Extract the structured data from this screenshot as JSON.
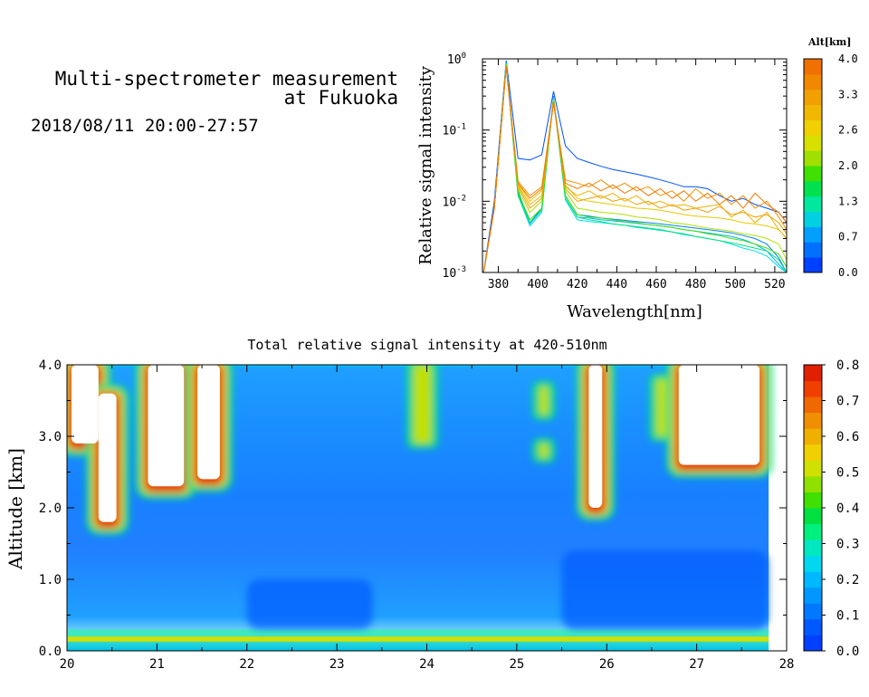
{
  "header": {
    "title_line1": "Multi-spectrometer measurement",
    "title_line2": "at Fukuoka",
    "datetime": "2018/08/11 20:00-27:57"
  },
  "chart_data": [
    {
      "type": "line",
      "xlabel": "Wavelength[nm]",
      "ylabel": "Relative signal intensity",
      "yscale": "log",
      "xlim": [
        372,
        526
      ],
      "ylim": [
        0.001,
        1
      ],
      "x_ticks": [
        "380",
        "400",
        "420",
        "440",
        "460",
        "480",
        "500",
        "520"
      ],
      "y_ticks": [
        {
          "base": "10",
          "exp": "-3"
        },
        {
          "base": "10",
          "exp": "-2"
        },
        {
          "base": "10",
          "exp": "-1"
        },
        {
          "base": "10",
          "exp": "0"
        }
      ],
      "x": [
        372,
        378,
        384,
        390,
        396,
        402,
        408,
        414,
        420,
        426,
        432,
        438,
        444,
        450,
        456,
        462,
        468,
        474,
        480,
        486,
        492,
        498,
        504,
        510,
        516,
        522,
        526
      ],
      "series": [
        {
          "altitude_km": 0.0,
          "color": "#0050ff",
          "values": [
            0.0008,
            0.01,
            0.95,
            0.04,
            0.038,
            0.045,
            0.35,
            0.06,
            0.04,
            0.035,
            0.031,
            0.028,
            0.026,
            0.024,
            0.022,
            0.02,
            0.018,
            0.016,
            0.016,
            0.015,
            0.012,
            0.01,
            0.011,
            0.009,
            0.008,
            0.007,
            0.005
          ]
        },
        {
          "altitude_km": 0.2,
          "color": "#0080ff",
          "values": [
            0.0008,
            0.008,
            0.9,
            0.014,
            0.005,
            0.008,
            0.3,
            0.012,
            0.0065,
            0.0062,
            0.0058,
            0.0056,
            0.0054,
            0.0052,
            0.005,
            0.0048,
            0.0046,
            0.0044,
            0.0042,
            0.004,
            0.0038,
            0.0036,
            0.0033,
            0.003,
            0.0025,
            0.0016,
            0.001
          ]
        },
        {
          "altitude_km": 0.5,
          "color": "#00b0ff",
          "values": [
            0.0008,
            0.008,
            0.88,
            0.013,
            0.0048,
            0.0075,
            0.29,
            0.011,
            0.006,
            0.0058,
            0.0055,
            0.0053,
            0.0051,
            0.0049,
            0.0047,
            0.0045,
            0.0043,
            0.004,
            0.0038,
            0.0036,
            0.0034,
            0.0032,
            0.0029,
            0.0025,
            0.002,
            0.0013,
            0.001
          ]
        },
        {
          "altitude_km": 1.0,
          "color": "#00e0e0",
          "values": [
            0.0008,
            0.008,
            0.86,
            0.012,
            0.0045,
            0.007,
            0.28,
            0.0105,
            0.0055,
            0.0052,
            0.005,
            0.0048,
            0.0046,
            0.0043,
            0.0041,
            0.0039,
            0.0037,
            0.0034,
            0.0032,
            0.003,
            0.0028,
            0.0025,
            0.0022,
            0.002,
            0.0017,
            0.0012,
            0.001
          ]
        },
        {
          "altitude_km": 1.5,
          "color": "#00e080",
          "values": [
            0.0008,
            0.008,
            0.85,
            0.012,
            0.005,
            0.0075,
            0.28,
            0.011,
            0.006,
            0.0055,
            0.0052,
            0.0048,
            0.0046,
            0.0044,
            0.0042,
            0.004,
            0.0037,
            0.0035,
            0.0032,
            0.003,
            0.0028,
            0.0026,
            0.0024,
            0.0022,
            0.002,
            0.0015,
            0.001
          ]
        },
        {
          "altitude_km": 2.2,
          "color": "#40e000",
          "values": [
            0.0008,
            0.008,
            0.84,
            0.013,
            0.0055,
            0.008,
            0.28,
            0.012,
            0.0065,
            0.006,
            0.0058,
            0.0055,
            0.0052,
            0.005,
            0.0047,
            0.0045,
            0.0043,
            0.004,
            0.0038,
            0.0035,
            0.0033,
            0.003,
            0.0028,
            0.0025,
            0.0022,
            0.0018,
            0.0012
          ]
        },
        {
          "altitude_km": 2.7,
          "color": "#b0e000",
          "values": [
            0.0008,
            0.008,
            0.82,
            0.015,
            0.007,
            0.01,
            0.27,
            0.014,
            0.008,
            0.0075,
            0.007,
            0.0068,
            0.0065,
            0.006,
            0.0058,
            0.0055,
            0.005,
            0.0048,
            0.0045,
            0.0042,
            0.004,
            0.0038,
            0.0035,
            0.0033,
            0.003,
            0.0025,
            0.0015
          ]
        },
        {
          "altitude_km": 3.0,
          "color": "#e8c800",
          "values": [
            0.0008,
            0.008,
            0.8,
            0.018,
            0.01,
            0.014,
            0.26,
            0.017,
            0.011,
            0.01,
            0.0095,
            0.009,
            0.0085,
            0.008,
            0.0078,
            0.0075,
            0.007,
            0.0065,
            0.0062,
            0.006,
            0.0058,
            0.0055,
            0.005,
            0.0048,
            0.0045,
            0.004,
            0.003
          ]
        },
        {
          "altitude_km": 3.2,
          "color": "#f0b000",
          "values": [
            0.0008,
            0.008,
            0.8,
            0.017,
            0.009,
            0.012,
            0.26,
            0.016,
            0.012,
            0.014,
            0.011,
            0.013,
            0.01,
            0.012,
            0.009,
            0.01,
            0.0085,
            0.009,
            0.008,
            0.0085,
            0.009,
            0.006,
            0.0075,
            0.005,
            0.007,
            0.004,
            0.003
          ]
        },
        {
          "altitude_km": 3.4,
          "color": "#f0a000",
          "values": [
            0.0008,
            0.008,
            0.78,
            0.016,
            0.008,
            0.011,
            0.25,
            0.015,
            0.01,
            0.011,
            0.012,
            0.01,
            0.011,
            0.009,
            0.01,
            0.008,
            0.009,
            0.0075,
            0.008,
            0.007,
            0.0085,
            0.0065,
            0.007,
            0.006,
            0.0065,
            0.005,
            0.0035
          ]
        },
        {
          "altitude_km": 3.6,
          "color": "#f09000",
          "values": [
            0.0008,
            0.008,
            0.78,
            0.019,
            0.012,
            0.016,
            0.25,
            0.02,
            0.018,
            0.016,
            0.02,
            0.015,
            0.018,
            0.014,
            0.016,
            0.012,
            0.014,
            0.01,
            0.015,
            0.011,
            0.013,
            0.009,
            0.012,
            0.008,
            0.01,
            0.006,
            0.004
          ]
        },
        {
          "altitude_km": 3.8,
          "color": "#f07800",
          "values": [
            0.0008,
            0.008,
            0.76,
            0.018,
            0.011,
            0.015,
            0.24,
            0.018,
            0.015,
            0.018,
            0.014,
            0.017,
            0.013,
            0.016,
            0.012,
            0.015,
            0.011,
            0.014,
            0.01,
            0.013,
            0.009,
            0.012,
            0.008,
            0.013,
            0.009,
            0.007,
            0.005
          ]
        }
      ],
      "colorbar": {
        "title": "Alt[km]",
        "labels": [
          "4.0",
          "3.3",
          "2.6",
          "2.0",
          "1.3",
          "0.7",
          "0.0"
        ],
        "colors": [
          "#0040ff",
          "#0070ff",
          "#00a0ff",
          "#00d0e0",
          "#00e8a0",
          "#00e050",
          "#40e000",
          "#a0e000",
          "#d8e000",
          "#f0d000",
          "#f0b800",
          "#f0a000",
          "#f08800",
          "#f07000"
        ]
      }
    },
    {
      "type": "heatmap",
      "title": "Total relative signal intensity at 420-510nm",
      "ylabel": "Altitude [km]",
      "xlim": [
        20,
        28
      ],
      "ylim": [
        0,
        4
      ],
      "x_ticks": [
        "20",
        "21",
        "22",
        "23",
        "24",
        "25",
        "26",
        "27",
        "28"
      ],
      "y_ticks": [
        "0.0",
        "1.0",
        "2.0",
        "3.0",
        "4.0"
      ],
      "data_x_range": [
        20,
        27.8
      ],
      "zlim": [
        0,
        0.8
      ],
      "colorbar": {
        "labels": [
          "0.8",
          "0.7",
          "0.6",
          "0.5",
          "0.4",
          "0.3",
          "0.2",
          "0.1",
          "0.0"
        ],
        "colors": [
          "#0040ff",
          "#0058ff",
          "#0078ff",
          "#0098ff",
          "#00b8ff",
          "#00d8f0",
          "#00e8c0",
          "#00f080",
          "#00e040",
          "#40e000",
          "#90e000",
          "#d0e000",
          "#f0d000",
          "#f0b000",
          "#f09000",
          "#f06800",
          "#f04000",
          "#e02000"
        ]
      },
      "features": [
        {
          "kind": "saturated",
          "x_start": 20.05,
          "x_end": 20.35,
          "alt_bottom": 2.9,
          "alt_top": 4.0
        },
        {
          "kind": "saturated",
          "x_start": 20.35,
          "x_end": 20.55,
          "alt_bottom": 1.8,
          "alt_top": 3.6
        },
        {
          "kind": "saturated",
          "x_start": 20.9,
          "x_end": 21.3,
          "alt_bottom": 2.3,
          "alt_top": 4.0
        },
        {
          "kind": "saturated",
          "x_start": 21.45,
          "x_end": 21.7,
          "alt_bottom": 2.4,
          "alt_top": 4.0
        },
        {
          "kind": "enhanced",
          "x_start": 23.85,
          "x_end": 24.05,
          "alt_bottom": 2.9,
          "alt_top": 4.0
        },
        {
          "kind": "saturated",
          "x_start": 25.8,
          "x_end": 25.95,
          "alt_bottom": 2.0,
          "alt_top": 4.0
        },
        {
          "kind": "enhanced",
          "x_start": 26.55,
          "x_end": 26.7,
          "alt_bottom": 3.0,
          "alt_top": 3.8
        },
        {
          "kind": "saturated",
          "x_start": 26.8,
          "x_end": 27.7,
          "alt_bottom": 2.6,
          "alt_top": 4.0
        },
        {
          "kind": "enhanced",
          "x_start": 25.25,
          "x_end": 25.35,
          "alt_bottom": 3.3,
          "alt_top": 3.7
        },
        {
          "kind": "enhanced",
          "x_start": 25.25,
          "x_end": 25.35,
          "alt_bottom": 2.7,
          "alt_top": 2.9
        },
        {
          "kind": "low",
          "x_start": 22.0,
          "x_end": 23.4,
          "alt_bottom": 0.3,
          "alt_top": 1.0
        },
        {
          "kind": "low",
          "x_start": 25.5,
          "x_end": 27.8,
          "alt_bottom": 0.3,
          "alt_top": 1.4
        }
      ]
    }
  ]
}
